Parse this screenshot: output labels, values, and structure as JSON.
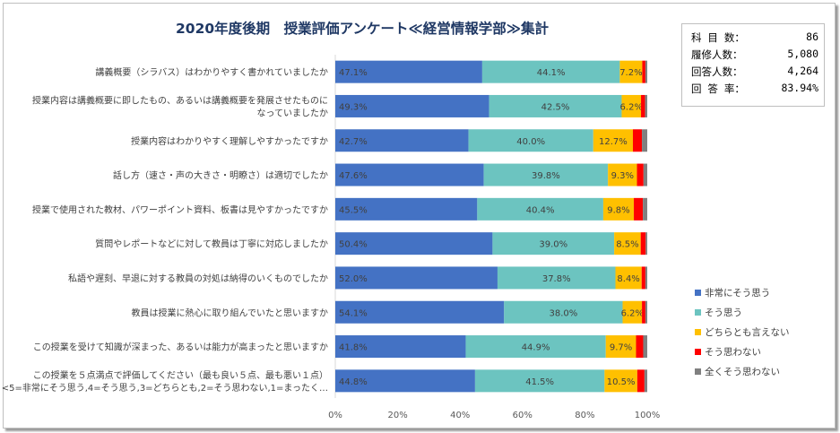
{
  "chart_data": {
    "type": "bar",
    "orientation": "horizontal",
    "stacked": "percent",
    "title": "2020年度後期　授業評価アンケート≪経営情報学部≫集計",
    "categories": [
      [
        "講義概要（シラバス）はわかりやすく書かれていましたか"
      ],
      [
        "授業内容は講義概要に即したもの、あるいは講義概要を発展させたものに",
        "なっていましたか"
      ],
      [
        "授業内容はわかりやすく理解しやすかったですか"
      ],
      [
        "話し方（速さ・声の大きさ・明瞭さ）は適切でしたか"
      ],
      [
        "授業で使用された教材、パワーポイント資料、板書は見やすかったですか"
      ],
      [
        "質問やレポートなどに対して教員は丁寧に対応しましたか"
      ],
      [
        "私語や遅刻、早退に対する教員の対処は納得のいくものでしたか"
      ],
      [
        "教員は授業に熱心に取り組んでいたと思いますか"
      ],
      [
        "この授業を受けて知識が深まった、あるいは能力が高まったと思いますか"
      ],
      [
        "この授業を５点満点で評価してください（最も良い５点、最も悪い１点）",
        "<5=非常にそう思う,4=そう思う,3=どちらとも,2=そう思わない,1=まったく…"
      ]
    ],
    "series": [
      {
        "name": "非常にそう思う",
        "color": "#4472c4",
        "values": [
          47.1,
          49.3,
          42.7,
          47.6,
          45.5,
          50.4,
          52.0,
          54.1,
          41.8,
          44.8
        ],
        "labels": [
          "47.1%",
          "49.3%",
          "42.7%",
          "47.6%",
          "45.5%",
          "50.4%",
          "52.0%",
          "54.1%",
          "41.8%",
          "44.8%"
        ]
      },
      {
        "name": "そう思う",
        "color": "#6cc4c0",
        "values": [
          44.1,
          42.5,
          40.0,
          39.8,
          40.4,
          39.0,
          37.8,
          38.0,
          44.9,
          41.5
        ],
        "labels": [
          "44.1%",
          "42.5%",
          "40.0%",
          "39.8%",
          "40.4%",
          "39.0%",
          "37.8%",
          "38.0%",
          "44.9%",
          "41.5%"
        ]
      },
      {
        "name": "どちらとも言えない",
        "color": "#ffc000",
        "values": [
          7.2,
          6.2,
          12.7,
          9.3,
          9.8,
          8.5,
          8.4,
          6.2,
          9.7,
          10.5
        ],
        "labels": [
          "7.2%",
          "6.2%",
          "12.7%",
          "9.3%",
          "9.8%",
          "8.5%",
          "8.4%",
          "6.2%",
          "9.7%",
          "10.5%"
        ]
      },
      {
        "name": "そう思わない",
        "color": "#ff0000",
        "values": [
          1.0,
          1.3,
          2.9,
          2.1,
          2.9,
          1.6,
          1.2,
          1.1,
          2.3,
          2.3
        ]
      },
      {
        "name": "全くそう思わない",
        "color": "#808080",
        "values": [
          0.6,
          0.7,
          1.7,
          1.2,
          1.4,
          0.5,
          0.6,
          0.6,
          1.3,
          0.9
        ]
      }
    ],
    "xlim": [
      0,
      100
    ],
    "xticks": [
      "0%",
      "20%",
      "40%",
      "60%",
      "80%",
      "100%"
    ],
    "grid": false,
    "legend_position": "right"
  },
  "stats": [
    {
      "label": "科 目 数：",
      "value": "86"
    },
    {
      "label": "履修人数：",
      "value": "5,080"
    },
    {
      "label": "回答人数：",
      "value": "4,264"
    },
    {
      "label": "回 答 率：",
      "value": "83.94%"
    }
  ]
}
